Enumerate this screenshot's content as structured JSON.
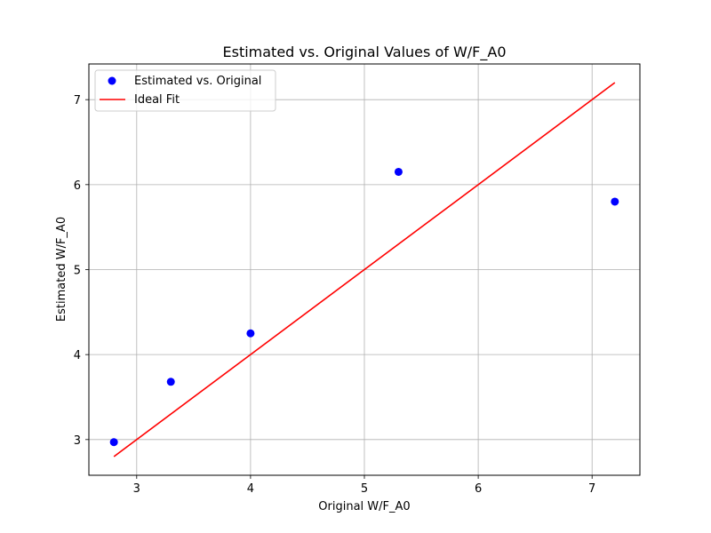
{
  "chart_data": {
    "type": "scatter",
    "title": "Estimated vs. Original Values of W/F_A0",
    "xlabel": "Original W/F_A0",
    "ylabel": "Estimated W/F_A0",
    "xlim": [
      2.58,
      7.42
    ],
    "ylim": [
      2.58,
      7.42
    ],
    "xticks": [
      3,
      4,
      5,
      6,
      7
    ],
    "yticks": [
      3,
      4,
      5,
      6,
      7
    ],
    "grid": true,
    "legend_position": "top-left",
    "series": [
      {
        "name": "Estimated vs. Original",
        "kind": "scatter",
        "color": "#0000ff",
        "x": [
          2.8,
          3.3,
          4.0,
          5.3,
          7.2
        ],
        "y": [
          2.97,
          3.68,
          4.25,
          6.15,
          5.8
        ]
      },
      {
        "name": "Ideal Fit",
        "kind": "line",
        "color": "#ff0000",
        "x": [
          2.8,
          7.2
        ],
        "y": [
          2.8,
          7.2
        ]
      }
    ]
  }
}
